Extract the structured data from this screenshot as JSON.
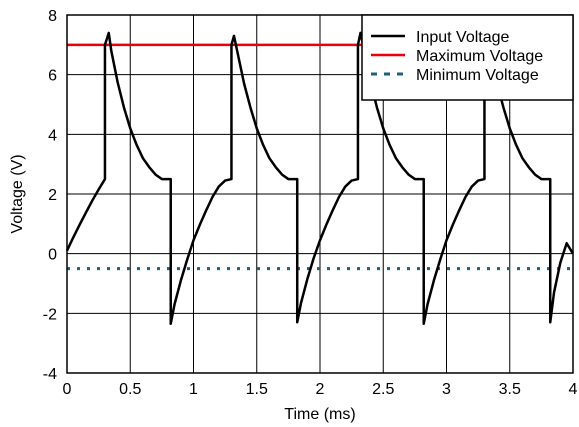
{
  "chart_data": {
    "type": "line",
    "title": "",
    "xlabel": "Time (ms)",
    "ylabel": "Voltage (V)",
    "xlim": [
      0,
      4
    ],
    "ylim": [
      -4,
      8
    ],
    "xticks": [
      0,
      0.5,
      1,
      1.5,
      2,
      2.5,
      3,
      3.5,
      4
    ],
    "xtick_labels": [
      "0",
      "0.5",
      "1",
      "1.5",
      "2",
      "2.5",
      "3",
      "3.5",
      "4"
    ],
    "yticks": [
      -4,
      -2,
      0,
      2,
      4,
      6,
      8
    ],
    "ytick_labels": [
      "-4",
      "-2",
      "0",
      "2",
      "4",
      "6",
      "8"
    ],
    "grid": true,
    "legend_position": "top-right",
    "series": [
      {
        "name": "Input Voltage",
        "color": "#000000",
        "style": "solid",
        "x": [
          0,
          0.05,
          0.1,
          0.15,
          0.2,
          0.25,
          0.3,
          0.3,
          0.33,
          0.35,
          0.4,
          0.45,
          0.5,
          0.55,
          0.6,
          0.65,
          0.7,
          0.75,
          0.8,
          0.82,
          0.82,
          0.85,
          0.9,
          0.95,
          1.0,
          1.05,
          1.1,
          1.15,
          1.2,
          1.25,
          1.3,
          1.3,
          1.32,
          1.35,
          1.4,
          1.45,
          1.5,
          1.55,
          1.6,
          1.65,
          1.7,
          1.75,
          1.8,
          1.82,
          1.82,
          1.85,
          1.9,
          1.95,
          2.0,
          2.05,
          2.1,
          2.15,
          2.2,
          2.25,
          2.3,
          2.3,
          2.32,
          2.35,
          2.4,
          2.45,
          2.5,
          2.55,
          2.6,
          2.65,
          2.7,
          2.75,
          2.8,
          2.82,
          2.82,
          2.85,
          2.9,
          2.95,
          3.0,
          3.05,
          3.1,
          3.15,
          3.2,
          3.25,
          3.3,
          3.3,
          3.32,
          3.35,
          3.4,
          3.45,
          3.5,
          3.55,
          3.6,
          3.65,
          3.7,
          3.75,
          3.8,
          3.82,
          3.82,
          3.85,
          3.9,
          3.95,
          4.0
        ],
        "y": [
          0.1,
          0.55,
          0.97,
          1.38,
          1.78,
          2.15,
          2.5,
          7.0,
          7.4,
          6.8,
          5.75,
          4.9,
          4.2,
          3.65,
          3.2,
          2.9,
          2.65,
          2.5,
          2.5,
          2.5,
          -2.35,
          -1.7,
          -0.9,
          -0.2,
          0.45,
          0.97,
          1.45,
          1.9,
          2.25,
          2.45,
          2.5,
          7.0,
          7.3,
          6.7,
          5.7,
          4.9,
          4.2,
          3.65,
          3.2,
          2.9,
          2.65,
          2.5,
          2.5,
          2.5,
          -2.3,
          -1.65,
          -0.85,
          -0.15,
          0.45,
          0.97,
          1.45,
          1.9,
          2.25,
          2.45,
          2.5,
          7.0,
          7.4,
          6.8,
          5.75,
          4.9,
          4.2,
          3.65,
          3.2,
          2.9,
          2.65,
          2.5,
          2.5,
          2.5,
          -2.35,
          -1.7,
          -0.9,
          -0.2,
          0.45,
          0.97,
          1.45,
          1.9,
          2.25,
          2.45,
          2.5,
          7.0,
          7.3,
          6.7,
          5.7,
          4.9,
          4.2,
          3.65,
          3.2,
          2.9,
          2.65,
          2.5,
          2.5,
          2.5,
          -2.3,
          -1.3,
          -0.3,
          0.35,
          0.0
        ]
      },
      {
        "name": "Maximum Voltage",
        "color": "#e8000b",
        "style": "solid",
        "x": [
          0,
          4
        ],
        "y": [
          7,
          7
        ]
      },
      {
        "name": "Minimum Voltage",
        "color": "#1f5f7a",
        "style": "dotted",
        "x": [
          0,
          4
        ],
        "y": [
          -0.5,
          -0.5
        ]
      }
    ]
  }
}
